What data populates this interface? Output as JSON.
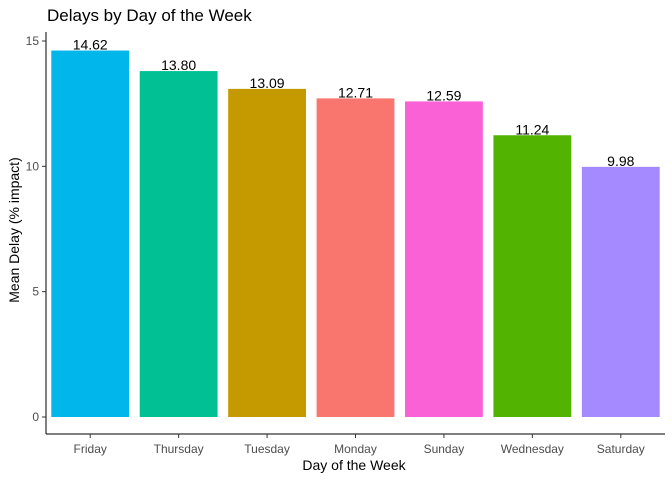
{
  "chart_data": {
    "type": "bar",
    "title": "Delays by Day of the Week",
    "xlabel": "Day of the Week",
    "ylabel": "Mean Delay (% impact)",
    "categories": [
      "Friday",
      "Thursday",
      "Tuesday",
      "Monday",
      "Sunday",
      "Wednesday",
      "Saturday"
    ],
    "values": [
      14.62,
      13.8,
      13.09,
      12.71,
      12.59,
      11.24,
      9.98
    ],
    "value_labels": [
      "14.62",
      "13.80",
      "13.09",
      "12.71",
      "12.59",
      "11.24",
      "9.98"
    ],
    "colors": [
      "#00B6EB",
      "#00C094",
      "#C49A00",
      "#F8766D",
      "#FB61D7",
      "#53B400",
      "#A58AFF"
    ],
    "ylim": [
      0,
      15.35
    ],
    "yticks": [
      0,
      5,
      10,
      15
    ],
    "grid": false,
    "legend": "none"
  }
}
